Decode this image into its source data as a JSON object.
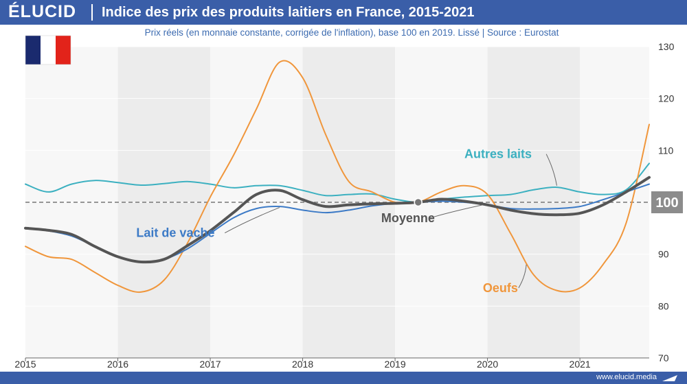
{
  "header": {
    "brand": "ÉLUCID",
    "title": "Indice des prix des produits laitiers en France, 2015-2021"
  },
  "footer": {
    "url": "www.elucid.media"
  },
  "colors": {
    "header": "#3a5ea8",
    "lait_de_vache": "#3c7ac6",
    "autres_laits": "#3bb0c0",
    "oeufs": "#f0963b",
    "moyenne": "#555555",
    "baseline_label_bg": "#8c8c8c",
    "flag": [
      "#1a2a6e",
      "#ffffff",
      "#e2231a"
    ]
  },
  "chart_data": {
    "type": "line",
    "title": "Indice des prix des produits laitiers en France, 2015-2021",
    "subtitle": "Prix réels (en monnaie constante, corrigée de l'inflation), base 100 en 2019. Lissé  |  Source : Eurostat",
    "xlabel": "",
    "ylabel": "",
    "x_ticks": [
      "2015",
      "2016",
      "2017",
      "2018",
      "2019",
      "2020",
      "2021"
    ],
    "y_ticks": [
      "70",
      "80",
      "90",
      "100",
      "110",
      "120",
      "130"
    ],
    "xlim": [
      2015,
      2021.75
    ],
    "ylim": [
      70,
      130
    ],
    "baseline": {
      "value": 100,
      "label": "100"
    },
    "grid": true,
    "legend": "inline labels",
    "x": [
      2015,
      2015.25,
      2015.5,
      2015.75,
      2016,
      2016.25,
      2016.5,
      2016.75,
      2017,
      2017.25,
      2017.5,
      2017.75,
      2018,
      2018.25,
      2018.5,
      2018.75,
      2019,
      2019.25,
      2019.5,
      2019.75,
      2020,
      2020.25,
      2020.5,
      2020.75,
      2021,
      2021.25,
      2021.5,
      2021.75
    ],
    "series": [
      {
        "name": "Lait de vache",
        "key": "lait_de_vache",
        "width": 2,
        "values": [
          95,
          94.5,
          93.5,
          91.5,
          89.5,
          88.5,
          89,
          91,
          94,
          97,
          98.8,
          99.2,
          98.5,
          98,
          98.5,
          99.3,
          99.8,
          100,
          100.2,
          100,
          99.5,
          98.8,
          98.7,
          98.8,
          99.2,
          100.5,
          102,
          103.5
        ]
      },
      {
        "name": "Autres laits",
        "key": "autres_laits",
        "width": 2,
        "values": [
          103.5,
          102,
          103.5,
          104.2,
          103.8,
          103.3,
          103.6,
          104,
          103.5,
          102.8,
          103.2,
          103.2,
          102.3,
          101.3,
          101.5,
          101.6,
          100.6,
          100,
          100.6,
          101,
          101.3,
          101.5,
          102.4,
          102.9,
          102,
          101.5,
          102.4,
          107.5
        ]
      },
      {
        "name": "Oeufs",
        "key": "oeufs",
        "width": 2,
        "values": [
          91.5,
          89.5,
          89,
          86.5,
          84,
          82.7,
          85,
          92,
          101,
          109,
          118,
          127,
          124,
          113,
          104,
          102,
          100,
          100,
          102,
          103.2,
          101.5,
          94,
          86,
          83,
          83.5,
          88,
          96,
          115
        ]
      },
      {
        "name": "Moyenne",
        "key": "moyenne",
        "width": 4,
        "values": [
          95,
          94.6,
          93.8,
          91.5,
          89.5,
          88.5,
          89,
          91.6,
          94.5,
          98,
          101.5,
          102.3,
          100.5,
          99.2,
          99.5,
          99.7,
          99.8,
          100,
          100.6,
          100.2,
          99.5,
          98.5,
          97.8,
          97.6,
          97.9,
          99.5,
          102,
          104.8
        ]
      }
    ],
    "labels": [
      {
        "series": "lait_de_vache",
        "text": "Lait de vache",
        "x": 2016.2,
        "y": 93.3,
        "anchor_x": 2017.75,
        "anchor_y": 99
      },
      {
        "series": "autres_laits",
        "text": "Autres laits",
        "x": 2019.75,
        "y": 108.5,
        "anchor_x": 2020.75,
        "anchor_y": 103.2
      },
      {
        "series": "moyenne",
        "text": "Moyenne",
        "x": 2018.85,
        "y": 96.2,
        "anchor_x": 2019.95,
        "anchor_y": 99.5
      },
      {
        "series": "oeufs",
        "text": "Oeufs",
        "x": 2019.95,
        "y": 82.7,
        "anchor_x": 2020.42,
        "anchor_y": 88
      }
    ],
    "marker": {
      "x": 2019.25,
      "y": 100
    }
  }
}
